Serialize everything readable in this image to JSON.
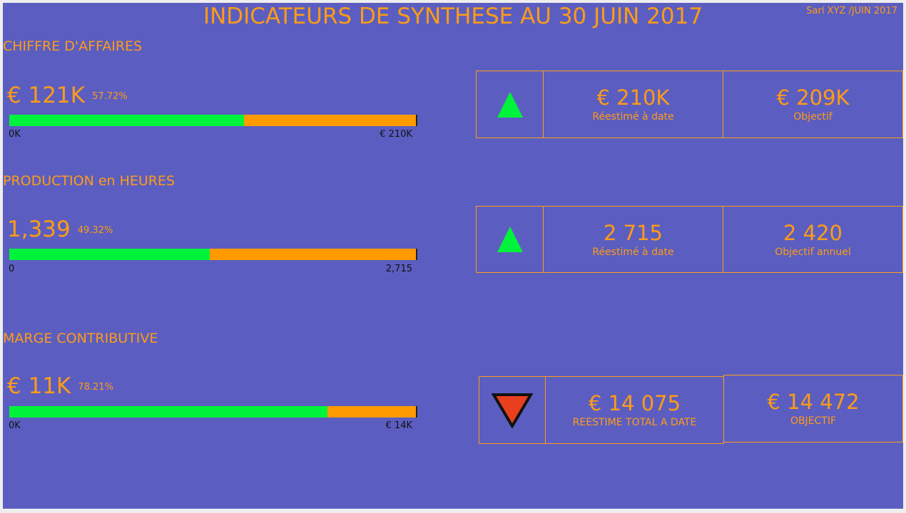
{
  "header": {
    "title": "INDICATEURS DE SYNTHESE AU 30 JUIN 2017",
    "company": "Sarl XYZ /JUIN 2017"
  },
  "colors": {
    "background": "#5b5ec0",
    "accent": "#ff9b17",
    "progress_fill": "#00f33b",
    "progress_rest": "#ff9b00",
    "trend_up": "#00f33b",
    "trend_down": "#e8401e"
  },
  "sections": [
    {
      "title": "CHIFFRE D'AFFAIRES",
      "value": "€ 121K",
      "percent": "57.72%",
      "progress_fraction": 0.5772,
      "bar_min": "0K",
      "bar_max": "€ 210K",
      "trend_icon": "triangle-up-icon",
      "card1": {
        "value": "€ 210K",
        "label": "Réestimé à date"
      },
      "card2": {
        "value": "€ 209K",
        "label": "Objectif"
      }
    },
    {
      "title": "PRODUCTION en HEURES",
      "value": "1,339",
      "percent": "49.32%",
      "progress_fraction": 0.4932,
      "bar_min": "0",
      "bar_max": "2,715",
      "trend_icon": "triangle-up-icon",
      "card1": {
        "value": "2 715",
        "label": "Réestimé à date"
      },
      "card2": {
        "value": "2 420",
        "label": "Objectif annuel"
      }
    },
    {
      "title": "MARGE CONTRIBUTIVE",
      "value": "€ 11K",
      "percent": "78.21%",
      "progress_fraction": 0.7821,
      "bar_min": "0K",
      "bar_max": "€ 14K",
      "trend_icon": "triangle-down-icon",
      "card1": {
        "value": "€ 14 075",
        "label": "REESTIME TOTAL A DATE"
      },
      "card2": {
        "value": "€ 14 472",
        "label": "OBJECTIF"
      }
    }
  ]
}
